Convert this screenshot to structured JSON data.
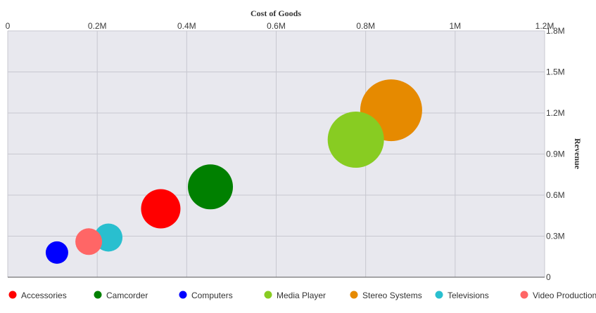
{
  "chart_data": {
    "type": "scatter",
    "subtype": "bubble",
    "xlabel": "Cost of Goods",
    "ylabel": "Revenue",
    "xlim": [
      0,
      1200000
    ],
    "ylim": [
      0,
      1800000
    ],
    "x_tick_labels": [
      "0",
      "0.2M",
      "0.4M",
      "0.6M",
      "0.8M",
      "1M",
      "1.2M"
    ],
    "y_tick_labels": [
      "0",
      "0.3M",
      "0.6M",
      "0.9M",
      "1.2M",
      "1.5M",
      "1.8M"
    ],
    "x_axis_position": "top",
    "y_axis_position": "right",
    "grid": true,
    "legend_position": "bottom",
    "series": [
      {
        "name": "Accessories",
        "color": "#ff0000",
        "x": 342000,
        "y": 500000,
        "size": 28
      },
      {
        "name": "Camcorder",
        "color": "#008000",
        "x": 453000,
        "y": 660000,
        "size": 32
      },
      {
        "name": "Computers",
        "color": "#0000ff",
        "x": 110000,
        "y": 180000,
        "size": 16
      },
      {
        "name": "Media Player",
        "color": "#88cc22",
        "x": 778000,
        "y": 1005000,
        "size": 40
      },
      {
        "name": "Stereo Systems",
        "color": "#e68a00",
        "x": 857000,
        "y": 1220000,
        "size": 44
      },
      {
        "name": "Televisions",
        "color": "#29bfcf",
        "x": 225000,
        "y": 290000,
        "size": 20
      },
      {
        "name": "Video Production",
        "color": "#ff6666",
        "x": 181000,
        "y": 260000,
        "size": 19
      }
    ]
  }
}
